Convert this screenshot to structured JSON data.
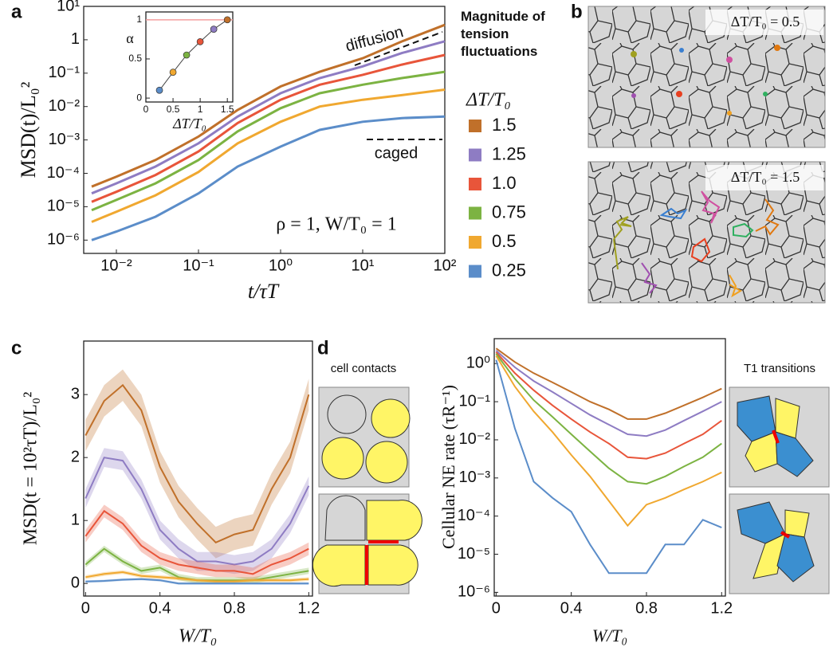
{
  "panel_labels": [
    "a",
    "b",
    "c",
    "d"
  ],
  "chart_data": [
    {
      "type": "line",
      "log_x": true,
      "log_y": true,
      "xlabel": "t/τT",
      "ylabel": "MSD(t)/L₀²",
      "annotations": [
        "diffusion",
        "caged",
        "ρ = 1, W/T₀ = 1"
      ],
      "legend_title": "Magnitude of tension fluctuations",
      "legend_subtitle": "ΔT/T₀",
      "x": [
        0.005,
        0.01,
        0.03,
        0.1,
        0.3,
        1,
        3,
        10,
        30,
        100
      ],
      "xlim": [
        0.004,
        100
      ],
      "ylim": [
        4e-07,
        10
      ],
      "xticks": [
        {
          "value": 0.01,
          "label": "10⁻²"
        },
        {
          "value": 0.1,
          "label": "10⁻¹"
        },
        {
          "value": 1,
          "label": "10⁰"
        },
        {
          "value": 10,
          "label": "10¹"
        },
        {
          "value": 100,
          "label": "10²"
        }
      ],
      "yticks": [
        {
          "value": 1e-06,
          "label": "10⁻⁶"
        },
        {
          "value": 1e-05,
          "label": "10⁻⁵"
        },
        {
          "value": 0.0001,
          "label": "10⁻⁴"
        },
        {
          "value": 0.001,
          "label": "10⁻³"
        },
        {
          "value": 0.01,
          "label": "10⁻²"
        },
        {
          "value": 0.1,
          "label": "10⁻¹"
        },
        1,
        {
          "value": 10,
          "label": "10¹"
        }
      ],
      "series": [
        {
          "name": "1.5",
          "color": "#c0702a",
          "values": [
            4e-05,
            7.9e-05,
            0.00025,
            0.00126,
            0.0079,
            0.04,
            0.11,
            0.28,
            0.89,
            2.8
          ]
        },
        {
          "name": "1.25",
          "color": "#8e7cc3",
          "values": [
            2.5e-05,
            5e-05,
            0.00016,
            0.00079,
            0.005,
            0.025,
            0.071,
            0.16,
            0.4,
            0.9
          ]
        },
        {
          "name": "1.0",
          "color": "#e8553a",
          "values": [
            1.4e-05,
            2.8e-05,
            8.9e-05,
            0.00045,
            0.0032,
            0.016,
            0.045,
            0.089,
            0.18,
            0.35
          ]
        },
        {
          "name": "0.75",
          "color": "#7cb342",
          "values": [
            7.9e-06,
            1.6e-05,
            5e-05,
            0.00025,
            0.0018,
            0.0089,
            0.025,
            0.045,
            0.071,
            0.11
          ]
        },
        {
          "name": "0.5",
          "color": "#f0a830",
          "values": [
            3.5e-06,
            7.1e-06,
            2.2e-05,
            0.00011,
            0.00079,
            0.0035,
            0.01,
            0.016,
            0.022,
            0.032
          ]
        },
        {
          "name": "0.25",
          "color": "#5b8dc9",
          "values": [
            1e-06,
            1.8e-06,
            5e-06,
            2.5e-05,
            0.00016,
            0.00063,
            0.002,
            0.0035,
            0.0045,
            0.005
          ]
        }
      ]
    },
    {
      "type": "scatter",
      "xlabel": "ΔT/T₀",
      "ylabel": "α",
      "x": [
        0.25,
        0.5,
        0.75,
        1,
        1.25,
        1.5
      ],
      "values": [
        0.1,
        0.33,
        0.55,
        0.72,
        0.88,
        1.0
      ],
      "colors": [
        "#5b8dc9",
        "#f0a830",
        "#7cb342",
        "#e8553a",
        "#8e7cc3",
        "#c0702a"
      ],
      "reference": 1,
      "xlim": [
        0,
        1.6
      ],
      "ylim": [
        -0.05,
        1.1
      ],
      "xticks": [
        0,
        0.5,
        1,
        1.5
      ],
      "yticks": [
        0,
        0.5,
        1
      ]
    },
    {
      "type": "band",
      "xlabel": "W/T₀",
      "ylabel": "MSD(t = 10²τT)/L₀²",
      "x": [
        0,
        0.1,
        0.2,
        0.3,
        0.4,
        0.5,
        0.6,
        0.7,
        0.8,
        0.9,
        1.0,
        1.1,
        1.2
      ],
      "xlim": [
        -0.01,
        1.22
      ],
      "ylim": [
        -0.2,
        3.85
      ],
      "xticks": [
        0,
        0.4,
        0.8,
        1.2
      ],
      "yticks": [
        0,
        1,
        2,
        3
      ],
      "series": [
        {
          "color": "#c0702a",
          "values": [
            2.35,
            2.9,
            3.15,
            2.75,
            1.85,
            1.3,
            0.95,
            0.65,
            0.78,
            0.85,
            1.5,
            2.0,
            3.0
          ],
          "error": 0.25
        },
        {
          "color": "#8e7cc3",
          "values": [
            1.35,
            2.0,
            1.95,
            1.5,
            0.85,
            0.55,
            0.35,
            0.35,
            0.3,
            0.35,
            0.55,
            0.95,
            1.55
          ],
          "error": 0.15
        },
        {
          "color": "#e8553a",
          "values": [
            0.75,
            1.15,
            0.95,
            0.6,
            0.4,
            0.3,
            0.25,
            0.2,
            0.2,
            0.15,
            0.3,
            0.4,
            0.55
          ],
          "error": 0.1
        },
        {
          "color": "#7cb342",
          "values": [
            0.3,
            0.55,
            0.35,
            0.2,
            0.25,
            0.1,
            0.05,
            0.05,
            0.05,
            0.05,
            0.1,
            0.15,
            0.2
          ],
          "error": 0.05
        },
        {
          "color": "#f0a830",
          "values": [
            0.1,
            0.15,
            0.18,
            0.12,
            0.1,
            0.08,
            0.05,
            0.03,
            0.03,
            0.05,
            0.05,
            0.05,
            0.07
          ],
          "error": 0.03
        },
        {
          "color": "#5b8dc9",
          "values": [
            0.03,
            0.04,
            0.06,
            0.07,
            0.05,
            0.0,
            0.0,
            0.0,
            0.0,
            0.0,
            0.0,
            0.0,
            0.0
          ],
          "error": 0.02
        }
      ]
    },
    {
      "type": "line",
      "log_y": true,
      "xlabel": "W/T₀",
      "ylabel": "Cellular NE rate (τR⁻¹)",
      "x": [
        0,
        0.1,
        0.2,
        0.3,
        0.4,
        0.5,
        0.6,
        0.7,
        0.8,
        0.9,
        1.0,
        1.1,
        1.2
      ],
      "xlim": [
        -0.01,
        1.22
      ],
      "ylim": [
        8e-07,
        4.5
      ],
      "xticks": [
        0,
        0.4,
        0.8,
        1.2
      ],
      "yticks": [
        {
          "value": 1e-06,
          "label": "10⁻⁶"
        },
        {
          "value": 1e-05,
          "label": "10⁻⁵"
        },
        {
          "value": 0.0001,
          "label": "10⁻⁴"
        },
        {
          "value": 0.001,
          "label": "10⁻³"
        },
        {
          "value": 0.01,
          "label": "10⁻²"
        },
        {
          "value": 0.1,
          "label": "10⁻¹"
        },
        {
          "value": 1,
          "label": "10⁰"
        }
      ],
      "series": [
        {
          "color": "#c0702a",
          "values": [
            2.5,
            1.1,
            0.56,
            0.32,
            0.18,
            0.1,
            0.063,
            0.035,
            0.035,
            0.05,
            0.08,
            0.13,
            0.22
          ]
        },
        {
          "color": "#8e7cc3",
          "values": [
            2.2,
            0.8,
            0.35,
            0.18,
            0.09,
            0.045,
            0.025,
            0.014,
            0.0126,
            0.018,
            0.032,
            0.056,
            0.1
          ]
        },
        {
          "color": "#e8553a",
          "values": [
            2.0,
            0.56,
            0.2,
            0.08,
            0.035,
            0.016,
            0.008,
            0.0035,
            0.0032,
            0.0045,
            0.008,
            0.014,
            0.032
          ]
        },
        {
          "color": "#7cb342",
          "values": [
            1.8,
            0.4,
            0.11,
            0.04,
            0.014,
            0.005,
            0.0018,
            0.0008,
            0.0007,
            0.0011,
            0.002,
            0.0035,
            0.008
          ]
        },
        {
          "color": "#f0a830",
          "values": [
            1.6,
            0.25,
            0.056,
            0.016,
            0.004,
            0.0011,
            0.00025,
            5.6e-05,
            0.0002,
            0.0003,
            0.0005,
            0.0008,
            0.0014
          ]
        },
        {
          "color": "#5b8dc9",
          "values": [
            1.25,
            0.02,
            0.0008,
            0.0003,
            0.00013,
            1.8e-05,
            3.2e-06,
            3.2e-06,
            3.2e-06,
            1.8e-05,
            1.8e-05,
            8e-05,
            5e-05
          ]
        }
      ]
    }
  ],
  "panel_b": {
    "labels": [
      "ΔT/T₀ = 0.5",
      "ΔT/T₀ = 1.5"
    ]
  },
  "panel_d": {
    "left_title": "cell contacts",
    "right_title": "T1 transitions"
  }
}
